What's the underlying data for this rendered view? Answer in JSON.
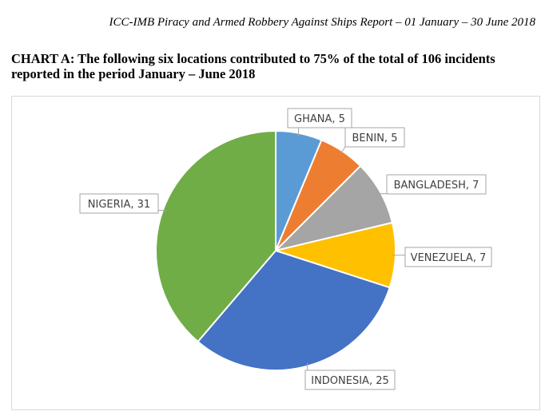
{
  "header": {
    "text": "ICC-IMB Piracy and Armed Robbery Against Ships Report – 01 January – 30 June 2018"
  },
  "title": {
    "text": "CHART A: The following six locations contributed to 75% of the total of 106 incidents reported in the period January – June 2018"
  },
  "chart_data": {
    "type": "pie",
    "title": "",
    "categories": [
      "GHANA",
      "BENIN",
      "BANGLADESH",
      "VENEZUELA",
      "INDONESIA",
      "NIGERIA"
    ],
    "values": [
      5,
      5,
      7,
      7,
      25,
      31
    ],
    "data_labels": [
      "GHANA, 5",
      "BENIN, 5",
      "BANGLADESH, 7",
      "VENEZUELA, 7",
      "INDONESIA, 25",
      "NIGERIA, 31"
    ],
    "colors": [
      "#5b9bd5",
      "#ed7d31",
      "#a5a5a5",
      "#ffc000",
      "#4472c4",
      "#70ad47"
    ],
    "start": "12 o'clock",
    "direction": "clockwise",
    "legend": "none"
  }
}
